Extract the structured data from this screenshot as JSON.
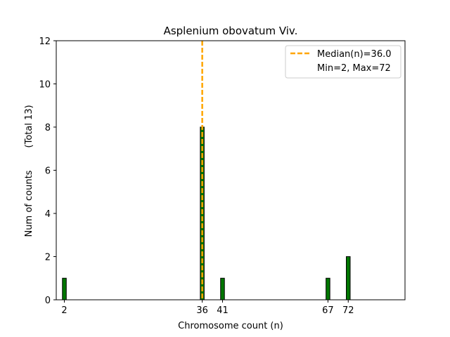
{
  "chart_data": {
    "type": "bar",
    "title": "Asplenium obovatum Viv.",
    "xlabel": "Chromosome count (n)",
    "ylabel": "Num of counts",
    "ylabel_note": "(Total 13)",
    "x_ticks": [
      2,
      36,
      41,
      67,
      72
    ],
    "y_ticks": [
      0,
      2,
      4,
      6,
      8,
      10,
      12
    ],
    "xlim": [
      0,
      86
    ],
    "ylim": [
      0,
      12
    ],
    "bars": [
      {
        "x": 2,
        "count": 1
      },
      {
        "x": 36,
        "count": 8
      },
      {
        "x": 41,
        "count": 1
      },
      {
        "x": 67,
        "count": 1
      },
      {
        "x": 72,
        "count": 2
      }
    ],
    "bar_color": "#007700",
    "median": 36.0,
    "median_color": "#ffa500",
    "legend": {
      "median_label": "Median(n)=36.0",
      "range_label": "Min=2, Max=72"
    }
  }
}
